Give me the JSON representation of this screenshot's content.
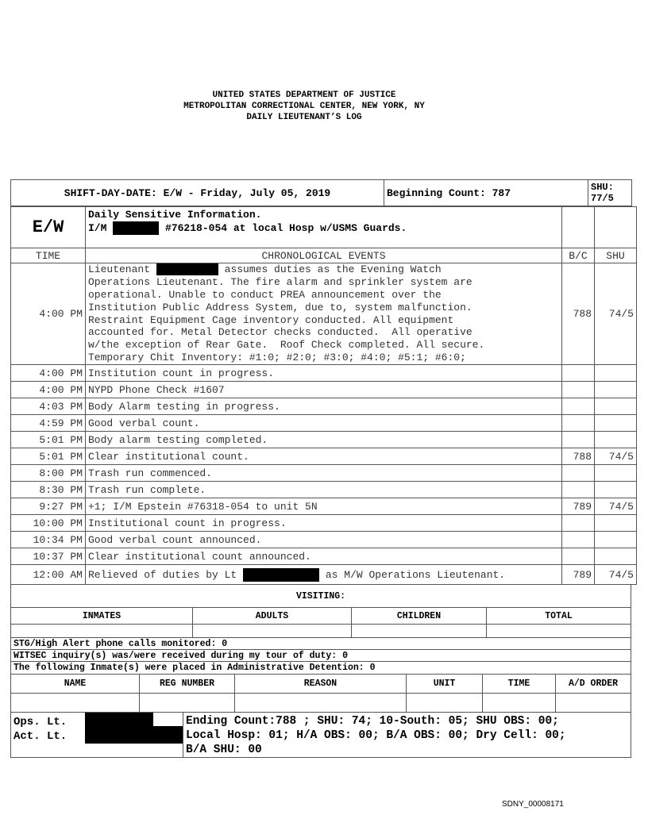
{
  "header": {
    "line1": "UNITED STATES DEPARTMENT OF JUSTICE",
    "line2": "METROPOLITAN CORRECTIONAL CENTER, NEW YORK, NY",
    "line3": "DAILY LIEUTENANT’S LOG"
  },
  "top": {
    "shift_date": "SHIFT-DAY-DATE: E/W - Friday, July 05, 2019",
    "beginning_count": "Beginning Count: 787",
    "shu_label": "SHU:",
    "shu_value": "77/5"
  },
  "sensitive": {
    "shift": "E/W",
    "title": "Daily Sensitive Information.",
    "im": "I/M",
    "text": "#76218-054 at local Hosp w/USMS Guards."
  },
  "columns": {
    "time": "TIME",
    "events": "CHRONOLOGICAL EVENTS",
    "bc": "B/C",
    "shu": "SHU"
  },
  "first_event": {
    "time": "4:00 PM",
    "pre": "Lieutenant",
    "post": "assumes duties as the Evening Watch",
    "lines": [
      "Operations Lieutenant. The fire alarm and sprinkler system are",
      "operational. Unable to conduct PREA announcement over the",
      "Institution Public Address System, due to, system malfunction.",
      "Restraint Equipment Cage inventory conducted. All equipment",
      "accounted for. Metal Detector checks conducted.  All operative",
      "w/the exception of Rear Gate.  Roof Check completed. All secure.",
      "Temporary Chit Inventory: #1:0; #2:0; #3:0; #4:0; #5:1; #6:0;"
    ],
    "bc": "788",
    "shu": "74/5"
  },
  "events": [
    {
      "time": "4:00 PM",
      "text": "Institution count in progress.",
      "bc": "",
      "shu": ""
    },
    {
      "time": "4:00 PM",
      "text": "NYPD Phone Check #1607",
      "bc": "",
      "shu": ""
    },
    {
      "time": "4:03 PM",
      "text": "Body Alarm testing in progress.",
      "bc": "",
      "shu": ""
    },
    {
      "time": "4:59 PM",
      "text": "Good verbal count.",
      "bc": "",
      "shu": ""
    },
    {
      "time": "5:01 PM",
      "text": "Body alarm testing completed.",
      "bc": "",
      "shu": ""
    },
    {
      "time": "5:01 PM",
      "text": "Clear institutional count.",
      "bc": "788",
      "shu": "74/5"
    },
    {
      "time": "8:00 PM",
      "text": "Trash run commenced.",
      "bc": "",
      "shu": ""
    },
    {
      "time": "8:30 PM",
      "text": "Trash run complete.",
      "bc": "",
      "shu": ""
    },
    {
      "time": "9:27 PM",
      "text": "+1; I/M Epstein #76318-054 to unit 5N",
      "bc": "789",
      "shu": "74/5"
    },
    {
      "time": "10:00 PM",
      "text": "Institutional count in progress.",
      "bc": "",
      "shu": ""
    },
    {
      "time": "10:34 PM",
      "text": "Good verbal count announced.",
      "bc": "",
      "shu": ""
    },
    {
      "time": "10:37 PM",
      "text": "Clear institutional count announced.",
      "bc": "",
      "shu": ""
    }
  ],
  "last_event": {
    "time": "12:00 AM",
    "pre": "Relieved of duties by Lt",
    "post": "as M/W Operations Lieutenant.",
    "bc": "789",
    "shu": "74/5"
  },
  "visiting": {
    "title": "VISITING:",
    "cols": [
      "INMATES",
      "ADULTS",
      "CHILDREN",
      "TOTAL"
    ]
  },
  "notes": [
    "STG/High Alert phone calls monitored: 0",
    "WITSEC inquiry(s) was/were received during my tour of duty: 0",
    "The following Inmate(s) were placed in Administrative Detention: 0"
  ],
  "ad_cols": [
    "NAME",
    "REG NUMBER",
    "REASON",
    "UNIT",
    "TIME",
    "A/D ORDER"
  ],
  "signoff": {
    "ops": "Ops. Lt.",
    "act": "Act. Lt.",
    "summary": [
      "Ending Count:788 ; SHU: 74; 10-South: 05; SHU OBS: 00;",
      "Local Hosp: 01; H/A OBS: 00; B/A OBS: 00; Dry Cell: 00;",
      "B/A SHU: 00"
    ]
  },
  "footer": "SDNY_00008171"
}
